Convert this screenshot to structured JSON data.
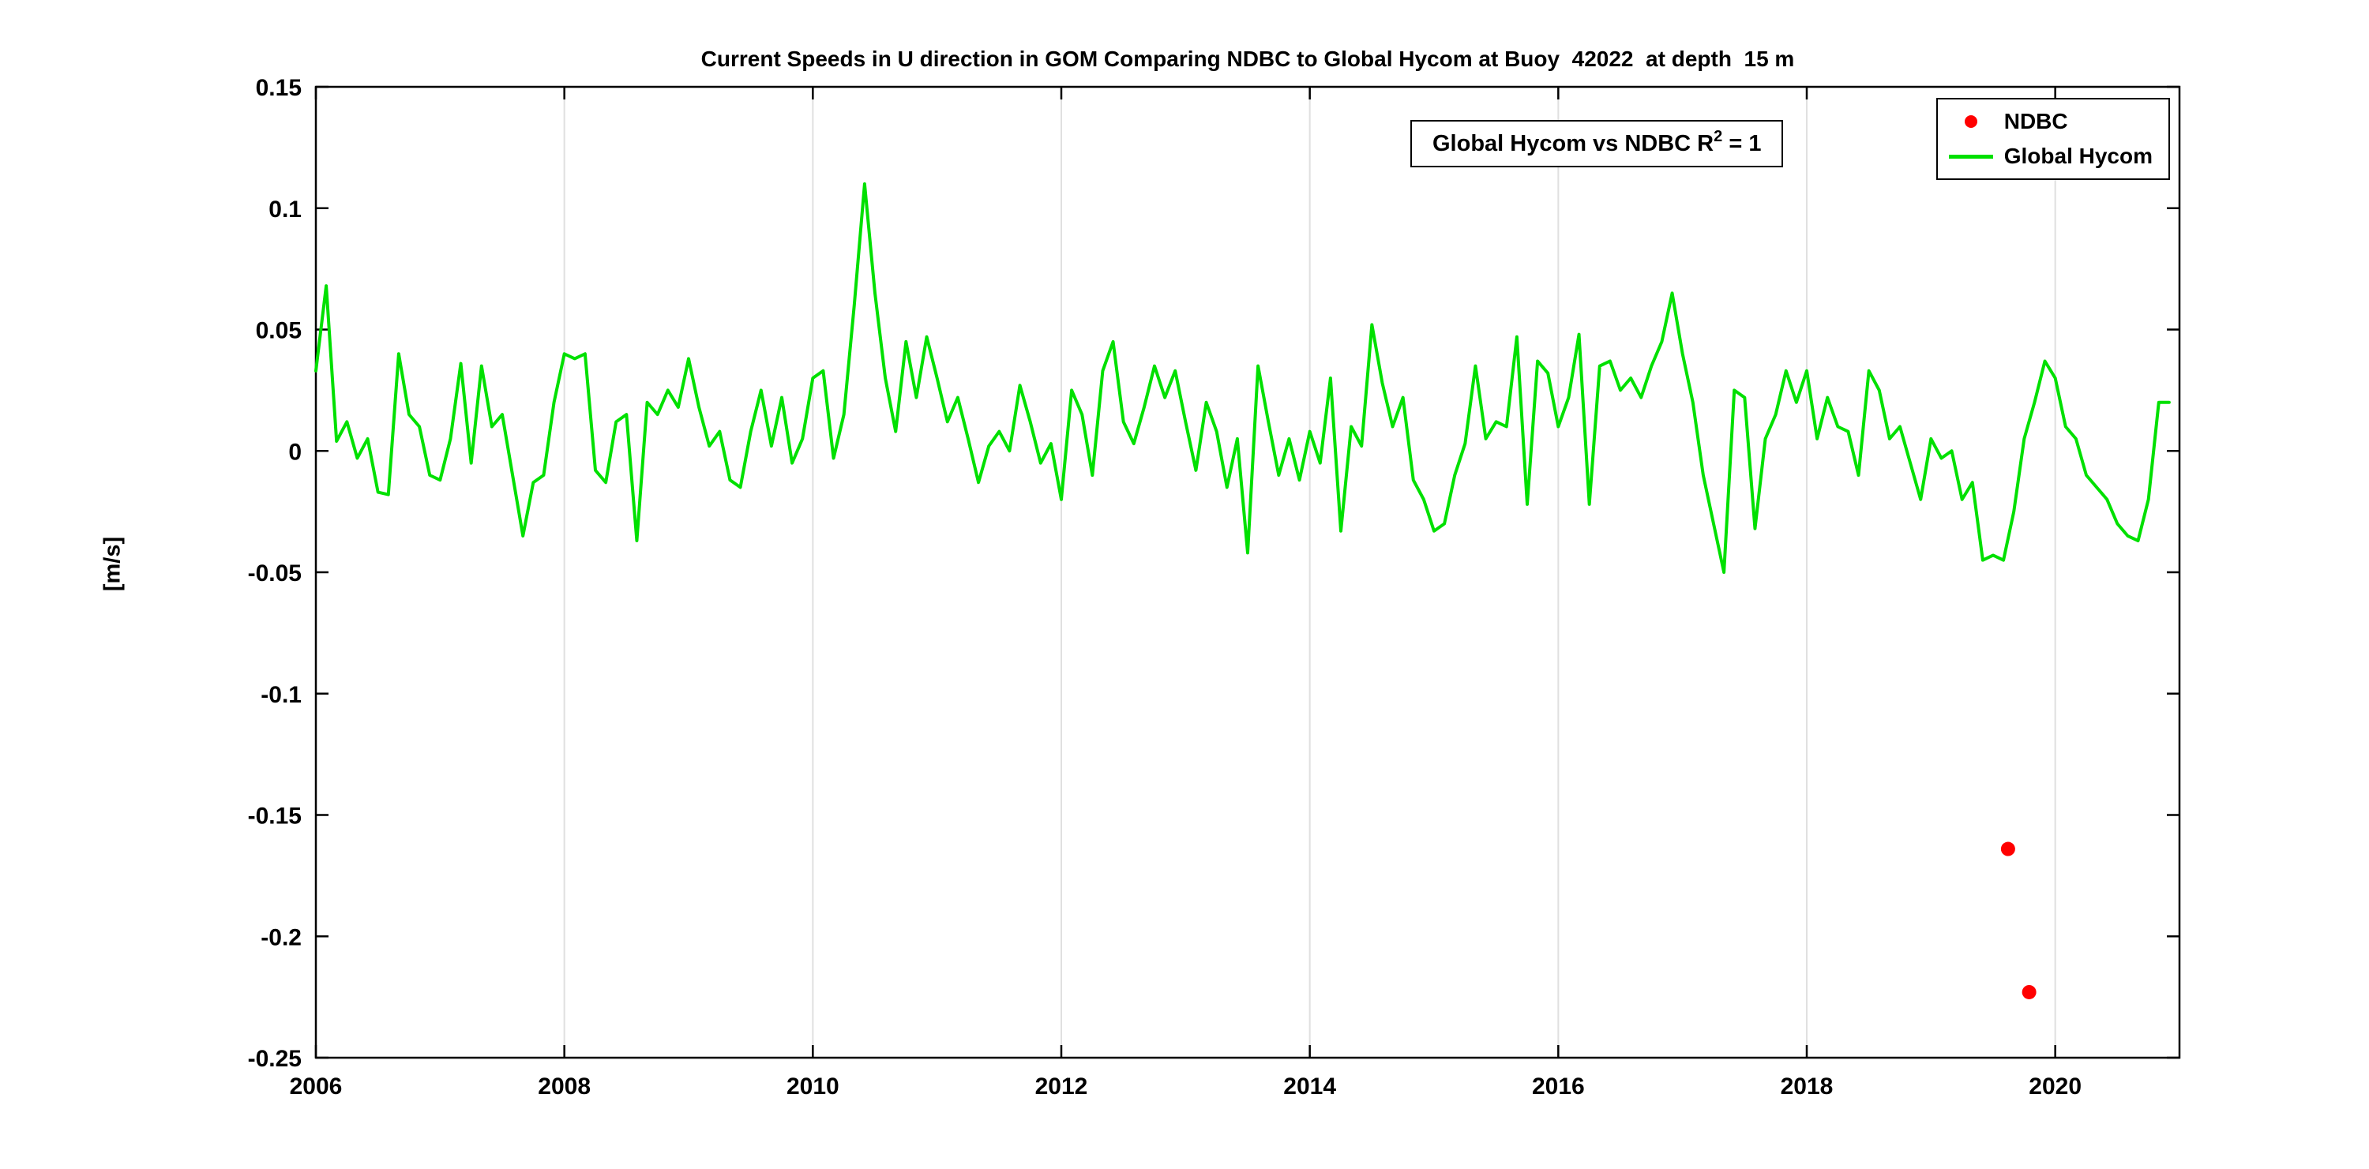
{
  "chart_data": {
    "type": "line",
    "title": "Current Speeds in U direction in GOM Comparing NDBC to Global Hycom at Buoy  42022  at depth  15 m",
    "ylabel": "[m/s]",
    "xlabel": "",
    "xlim": [
      2006,
      2021
    ],
    "ylim": [
      -0.25,
      0.15
    ],
    "grid": "vertical",
    "legend_position": "top-right",
    "annotation": {
      "prefix": "Global Hycom vs NDBC R",
      "sup": "2",
      "suffix": " = 1"
    },
    "colors": {
      "axis": "#000000",
      "grid": "#e0e0e0",
      "background": "#ffffff"
    },
    "xticks": [
      {
        "v": 2006,
        "label": "2006"
      },
      {
        "v": 2008,
        "label": "2008"
      },
      {
        "v": 2010,
        "label": "2010"
      },
      {
        "v": 2012,
        "label": "2012"
      },
      {
        "v": 2014,
        "label": "2014"
      },
      {
        "v": 2016,
        "label": "2016"
      },
      {
        "v": 2018,
        "label": "2018"
      },
      {
        "v": 2020,
        "label": "2020"
      }
    ],
    "yticks": [
      {
        "v": -0.25,
        "label": "-0.25"
      },
      {
        "v": -0.2,
        "label": "-0.2"
      },
      {
        "v": -0.15,
        "label": "-0.15"
      },
      {
        "v": -0.1,
        "label": "-0.1"
      },
      {
        "v": -0.05,
        "label": "-0.05"
      },
      {
        "v": 0,
        "label": "0"
      },
      {
        "v": 0.05,
        "label": "0.05"
      },
      {
        "v": 0.1,
        "label": "0.1"
      },
      {
        "v": 0.15,
        "label": "0.15"
      }
    ],
    "legend": [
      {
        "label": "NDBC",
        "marker": "dot",
        "color": "#ff0000"
      },
      {
        "label": "Global Hycom",
        "marker": "line",
        "color": "#00e000"
      }
    ],
    "series": [
      {
        "name": "Global Hycom",
        "type": "line",
        "color": "#00e000",
        "x_start": 2006,
        "x_step": 0.0833333,
        "values": [
          0.033,
          0.068,
          0.004,
          0.012,
          -0.003,
          0.005,
          -0.017,
          -0.018,
          0.04,
          0.015,
          0.01,
          -0.01,
          -0.012,
          0.005,
          0.036,
          -0.005,
          0.035,
          0.01,
          0.015,
          -0.01,
          -0.035,
          -0.013,
          -0.01,
          0.02,
          0.04,
          0.038,
          0.04,
          -0.008,
          -0.013,
          0.012,
          0.015,
          -0.037,
          0.02,
          0.015,
          0.025,
          0.018,
          0.038,
          0.018,
          0.002,
          0.008,
          -0.012,
          -0.015,
          0.008,
          0.025,
          0.002,
          0.022,
          -0.005,
          0.005,
          0.03,
          0.033,
          -0.003,
          0.015,
          0.06,
          0.11,
          0.065,
          0.03,
          0.008,
          0.045,
          0.022,
          0.047,
          0.03,
          0.012,
          0.022,
          0.005,
          -0.013,
          0.002,
          0.008,
          0.0,
          0.027,
          0.012,
          -0.005,
          0.003,
          -0.02,
          0.025,
          0.015,
          -0.01,
          0.033,
          0.045,
          0.012,
          0.003,
          0.018,
          0.035,
          0.022,
          0.033,
          0.012,
          -0.008,
          0.02,
          0.008,
          -0.015,
          0.005,
          -0.042,
          0.035,
          0.012,
          -0.01,
          0.005,
          -0.012,
          0.008,
          -0.005,
          0.03,
          -0.033,
          0.01,
          0.002,
          0.052,
          0.028,
          0.01,
          0.022,
          -0.012,
          -0.02,
          -0.033,
          -0.03,
          -0.01,
          0.003,
          0.035,
          0.005,
          0.012,
          0.01,
          0.047,
          -0.022,
          0.037,
          0.032,
          0.01,
          0.022,
          0.048,
          -0.022,
          0.035,
          0.037,
          0.025,
          0.03,
          0.022,
          0.035,
          0.045,
          0.065,
          0.04,
          0.02,
          -0.01,
          -0.03,
          -0.05,
          0.025,
          0.022,
          -0.032,
          0.005,
          0.015,
          0.033,
          0.02,
          0.033,
          0.005,
          0.022,
          0.01,
          0.008,
          -0.01,
          0.033,
          0.025,
          0.005,
          0.01,
          -0.005,
          -0.02,
          0.005,
          -0.003,
          0.0,
          -0.02,
          -0.013,
          -0.045,
          -0.043,
          -0.045,
          -0.025,
          0.005,
          0.02,
          0.037,
          0.03,
          0.01,
          0.005,
          -0.01,
          -0.015,
          -0.02,
          -0.03,
          -0.035,
          -0.037,
          -0.02,
          0.02,
          0.02
        ]
      },
      {
        "name": "NDBC",
        "type": "scatter",
        "color": "#ff0000",
        "points": [
          [
            2019.62,
            -0.164
          ],
          [
            2019.79,
            -0.223
          ]
        ]
      }
    ]
  }
}
